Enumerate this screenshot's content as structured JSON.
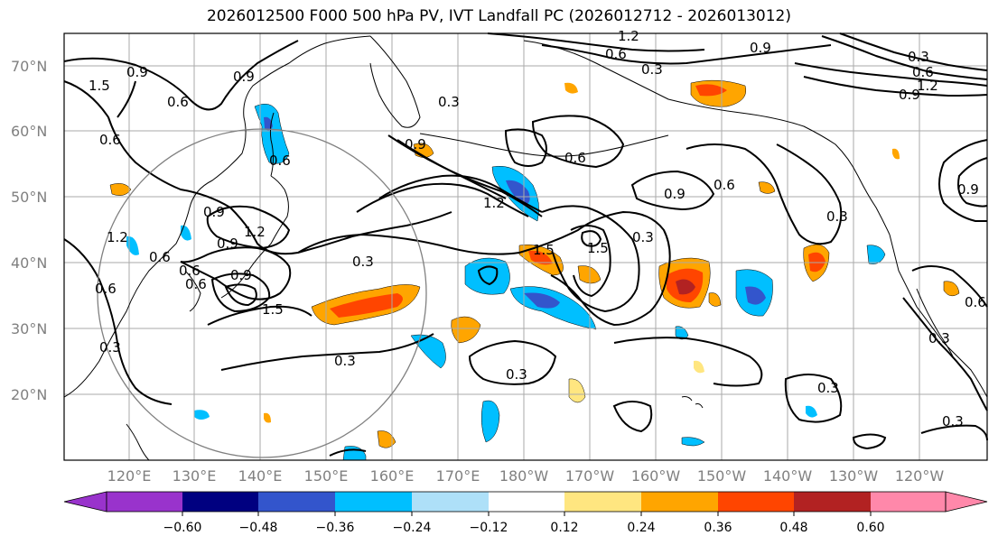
{
  "title": "2026012500 F000 500 hPa PV, IVT Landfall PC (2026012712 - 2026013012)",
  "lat_labels": [
    "70°N",
    "60°N",
    "50°N",
    "40°N",
    "30°N",
    "20°N"
  ],
  "lon_labels": [
    "120°E",
    "130°E",
    "140°E",
    "150°E",
    "160°E",
    "170°E",
    "180°W",
    "170°W",
    "160°W",
    "150°W",
    "140°W",
    "130°W",
    "120°W"
  ],
  "contour_labels": [
    "1.2",
    "0.9",
    "0.6",
    "0.3",
    "1.5",
    "0.9",
    "0.6",
    "0.6",
    "0.6",
    "0.9",
    "1.2",
    "0.9",
    "0.6",
    "0.3",
    "0.9",
    "1.2",
    "1.5",
    "0.6",
    "0.3",
    "0.9",
    "0.6",
    "1.5",
    "0.3",
    "0.3",
    "0.3",
    "0.3",
    "0.3",
    "0.3",
    "0.3",
    "0.3",
    "0.3",
    "0.6",
    "0.9",
    "1.2",
    "0.9",
    "0.6",
    "0.6",
    "0.9",
    "0.6",
    "1.5",
    "1.2",
    "0.9",
    "0.6"
  ],
  "colorbar": {
    "ticks": [
      "−0.60",
      "−0.48",
      "−0.36",
      "−0.24",
      "−0.12",
      "0.12",
      "0.24",
      "0.36",
      "0.48",
      "0.60"
    ],
    "colors": [
      "#9933cc",
      "#000080",
      "#3355cc",
      "#00bfff",
      "#aee0f8",
      "#ffffff",
      "#ffe680",
      "#ffa500",
      "#ff4500",
      "#b22222",
      "#ff88aa"
    ]
  },
  "colors": {
    "contour": "#000000",
    "grid": "#aaaaaa",
    "circle": "#808080",
    "coast": "#000000"
  }
}
